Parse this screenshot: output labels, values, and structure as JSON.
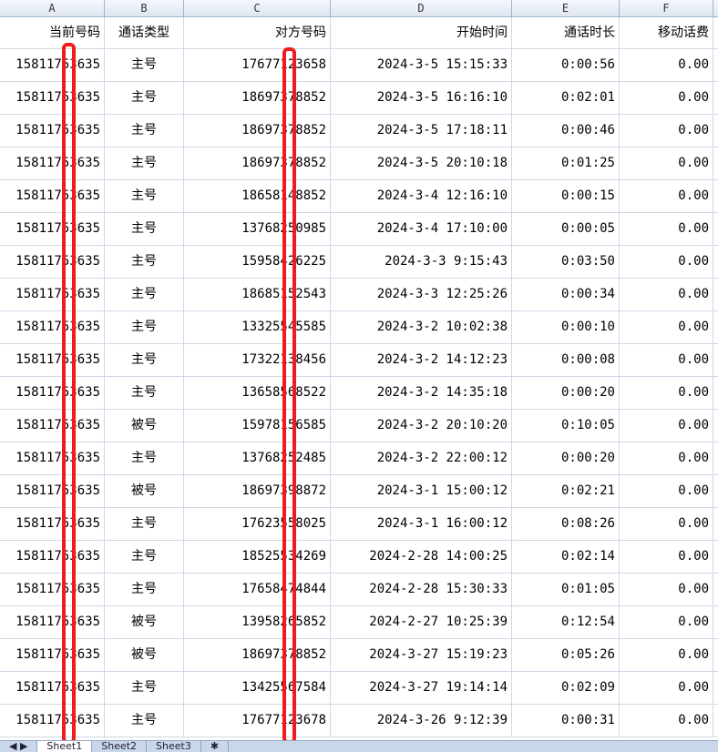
{
  "columns": [
    "A",
    "B",
    "C",
    "D",
    "E",
    "F"
  ],
  "headers": [
    "当前号码",
    "通话类型",
    "对方号码",
    "开始时间",
    "通话时长",
    "移动话费"
  ],
  "rows": [
    [
      "15811753635",
      "主号",
      "17677123658",
      "2024-3-5 15:15:33",
      "0:00:56",
      "0.00"
    ],
    [
      "15811753635",
      "主号",
      "18697378852",
      "2024-3-5 16:16:10",
      "0:02:01",
      "0.00"
    ],
    [
      "15811753635",
      "主号",
      "18697378852",
      "2024-3-5 17:18:11",
      "0:00:46",
      "0.00"
    ],
    [
      "15811753635",
      "主号",
      "18697378852",
      "2024-3-5 20:10:18",
      "0:01:25",
      "0.00"
    ],
    [
      "15811753635",
      "主号",
      "18658148852",
      "2024-3-4 12:16:10",
      "0:00:15",
      "0.00"
    ],
    [
      "15811753635",
      "主号",
      "13768250985",
      "2024-3-4 17:10:00",
      "0:00:05",
      "0.00"
    ],
    [
      "15811753635",
      "主号",
      "15958426225",
      "2024-3-3 9:15:43",
      "0:03:50",
      "0.00"
    ],
    [
      "15811753635",
      "主号",
      "18685152543",
      "2024-3-3 12:25:26",
      "0:00:34",
      "0.00"
    ],
    [
      "15811753635",
      "主号",
      "13325545585",
      "2024-3-2 10:02:38",
      "0:00:10",
      "0.00"
    ],
    [
      "15811753635",
      "主号",
      "17322138456",
      "2024-3-2 14:12:23",
      "0:00:08",
      "0.00"
    ],
    [
      "15811753635",
      "主号",
      "13658568522",
      "2024-3-2 14:35:18",
      "0:00:20",
      "0.00"
    ],
    [
      "15811753635",
      "被号",
      "15978156585",
      "2024-3-2 20:10:20",
      "0:10:05",
      "0.00"
    ],
    [
      "15811753635",
      "主号",
      "13768252485",
      "2024-3-2 22:00:12",
      "0:00:20",
      "0.00"
    ],
    [
      "15811753635",
      "被号",
      "18697398872",
      "2024-3-1 15:00:12",
      "0:02:21",
      "0.00"
    ],
    [
      "15811753635",
      "主号",
      "17623558025",
      "2024-3-1 16:00:12",
      "0:08:26",
      "0.00"
    ],
    [
      "15811753635",
      "主号",
      "18525534269",
      "2024-2-28 14:00:25",
      "0:02:14",
      "0.00"
    ],
    [
      "15811753635",
      "主号",
      "17658474844",
      "2024-2-28 15:30:33",
      "0:01:05",
      "0.00"
    ],
    [
      "15811753635",
      "被号",
      "13958265852",
      "2024-2-27 10:25:39",
      "0:12:54",
      "0.00"
    ],
    [
      "15811753635",
      "被号",
      "18697378852",
      "2024-3-27 15:19:23",
      "0:05:26",
      "0.00"
    ],
    [
      "15811753635",
      "主号",
      "13425567584",
      "2024-3-27 19:14:14",
      "0:02:09",
      "0.00"
    ],
    [
      "15811753635",
      "主号",
      "17677123678",
      "2024-3-26 9:12:39",
      "0:00:31",
      "0.00"
    ]
  ],
  "sheets": [
    "Sheet1",
    "Sheet2",
    "Sheet3"
  ],
  "redaction_color": "#ee1c1c"
}
